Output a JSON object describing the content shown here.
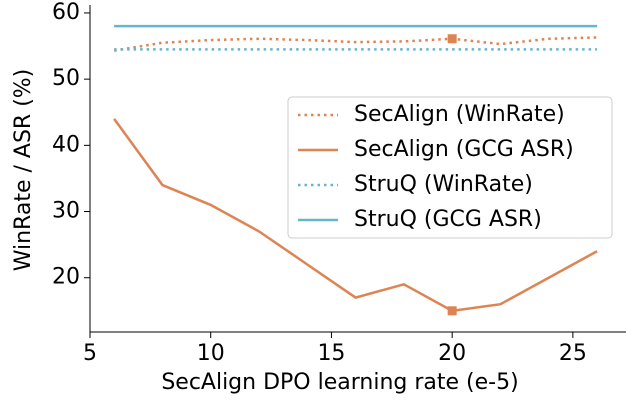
{
  "chart_data": {
    "type": "line",
    "xlabel": "SecAlign DPO learning rate (e-5)",
    "ylabel": "WinRate / ASR (%)",
    "x": [
      6,
      8,
      10,
      12,
      14,
      16,
      18,
      20,
      22,
      24,
      26
    ],
    "series": [
      {
        "name": "SecAlign (WinRate)",
        "color": "#dd8452",
        "style": "dotted",
        "marker": true,
        "values": [
          54.3,
          55.5,
          55.9,
          56.1,
          55.9,
          55.6,
          55.7,
          56.1,
          55.3,
          56.1,
          56.3
        ]
      },
      {
        "name": "SecAlign (GCG ASR)",
        "color": "#dd8452",
        "style": "solid",
        "marker": true,
        "values": [
          44,
          34,
          31,
          27,
          22,
          17,
          19,
          15,
          16,
          20,
          24
        ]
      },
      {
        "name": "StruQ (WinRate)",
        "color": "#64b5cd",
        "style": "dotted",
        "marker": false,
        "values": [
          54.5,
          54.5,
          54.5,
          54.5,
          54.5,
          54.5,
          54.5,
          54.5,
          54.5,
          54.5,
          54.5
        ]
      },
      {
        "name": "StruQ (GCG ASR)",
        "color": "#64b5cd",
        "style": "solid",
        "marker": false,
        "values": [
          58,
          58,
          58,
          58,
          58,
          58,
          58,
          58,
          58,
          58,
          58
        ]
      }
    ],
    "highlight_x": 20,
    "xlim": [
      5,
      27.2
    ],
    "xticks": [
      5,
      10,
      15,
      20,
      25
    ],
    "ylim": [
      11.8,
      61.2
    ],
    "yticks": [
      20,
      30,
      40,
      50,
      60
    ],
    "legend": "center right"
  }
}
